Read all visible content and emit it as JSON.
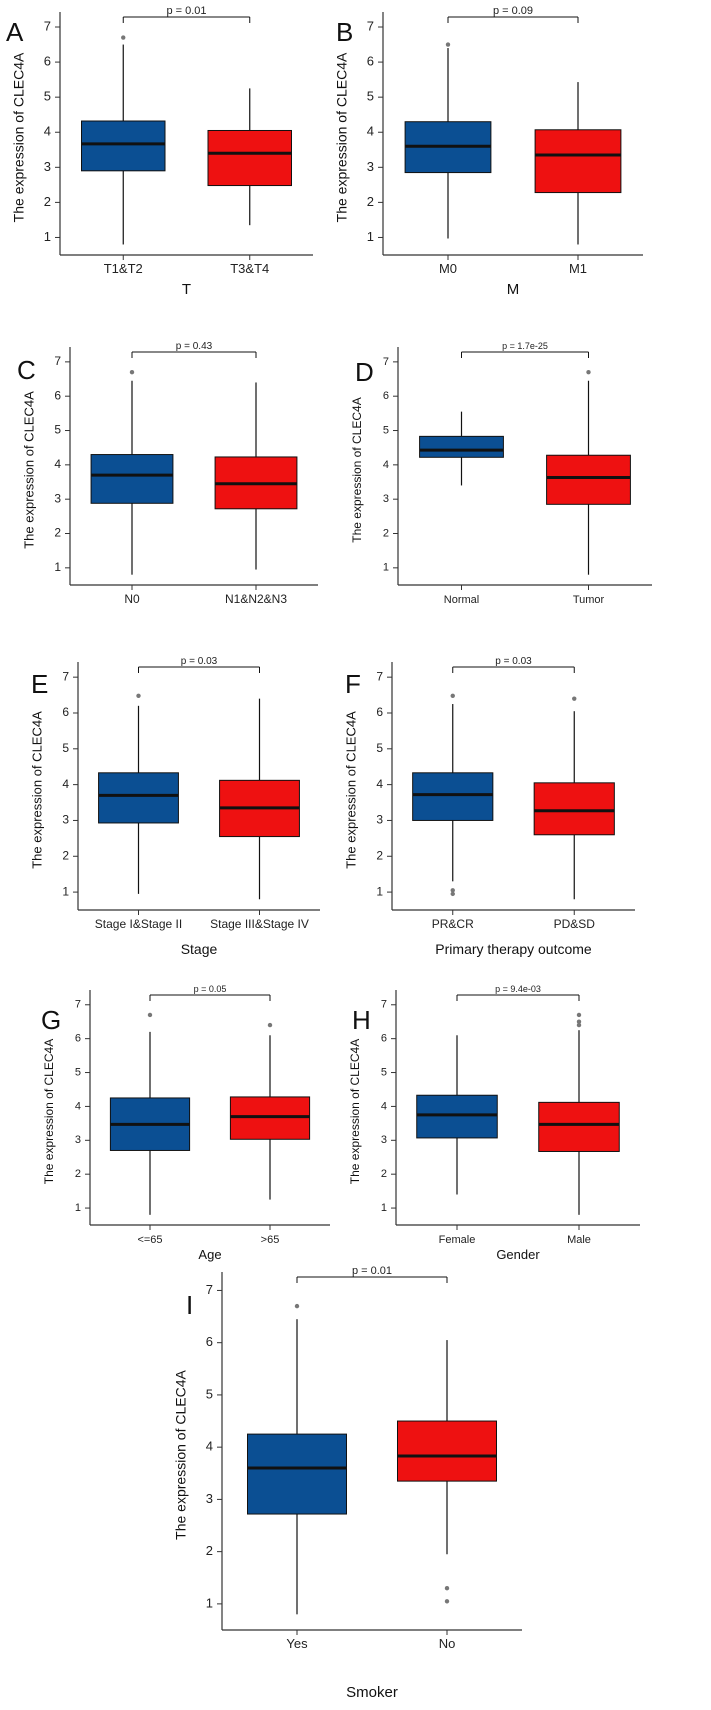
{
  "figure": {
    "colors": {
      "box_1": "#0b4f93",
      "box_2": "#ee1111",
      "median": "#111111",
      "outlier": "#777777",
      "axis": "#333333"
    }
  },
  "chart_data": [
    {
      "panel": "A",
      "type": "box",
      "ylabel": "The expression of CLEC4A",
      "xlabel": "T",
      "ylim": [
        0.5,
        7.2
      ],
      "yticks": [
        1,
        2,
        3,
        4,
        5,
        6,
        7
      ],
      "p_value": "p = 0.01",
      "categories": [
        "T1&T2",
        "T3&T4"
      ],
      "boxes": [
        {
          "category": "T1&T2",
          "min": 0.8,
          "q1": 2.9,
          "median": 3.67,
          "q3": 4.32,
          "max": 6.5,
          "outliers": [
            6.7
          ]
        },
        {
          "category": "T3&T4",
          "min": 1.35,
          "q1": 2.48,
          "median": 3.4,
          "q3": 4.05,
          "max": 5.25,
          "outliers": []
        }
      ]
    },
    {
      "panel": "B",
      "type": "box",
      "ylabel": "The expression of CLEC4A",
      "xlabel": "M",
      "ylim": [
        0.5,
        7.2
      ],
      "yticks": [
        1,
        2,
        3,
        4,
        5,
        6,
        7
      ],
      "p_value": "p = 0.09",
      "categories": [
        "M0",
        "M1"
      ],
      "boxes": [
        {
          "category": "M0",
          "min": 0.97,
          "q1": 2.85,
          "median": 3.6,
          "q3": 4.3,
          "max": 6.4,
          "outliers": [
            6.5
          ]
        },
        {
          "category": "M1",
          "min": 0.8,
          "q1": 2.28,
          "median": 3.35,
          "q3": 4.07,
          "max": 5.43,
          "outliers": []
        }
      ]
    },
    {
      "panel": "C",
      "type": "box",
      "ylabel": "The expression of CLEC4A",
      "xlabel": "",
      "ylim": [
        0.5,
        7.2
      ],
      "yticks": [
        1,
        2,
        3,
        4,
        5,
        6,
        7
      ],
      "p_value": "p = 0.43",
      "categories": [
        "N0",
        "N1&N2&N3"
      ],
      "boxes": [
        {
          "category": "N0",
          "min": 0.8,
          "q1": 2.88,
          "median": 3.7,
          "q3": 4.3,
          "max": 6.45,
          "outliers": [
            6.7
          ]
        },
        {
          "category": "N1&N2&N3",
          "min": 0.95,
          "q1": 2.72,
          "median": 3.45,
          "q3": 4.23,
          "max": 6.4,
          "outliers": []
        }
      ]
    },
    {
      "panel": "D",
      "type": "box",
      "ylabel": "The expression of CLEC4A",
      "xlabel": "",
      "ylim": [
        0.5,
        7.2
      ],
      "yticks": [
        1,
        2,
        3,
        4,
        5,
        6,
        7
      ],
      "p_value": "p = 1.7e-25",
      "categories": [
        "Normal",
        "Tumor"
      ],
      "boxes": [
        {
          "category": "Normal",
          "min": 3.4,
          "q1": 4.22,
          "median": 4.43,
          "q3": 4.83,
          "max": 5.55,
          "outliers": []
        },
        {
          "category": "Tumor",
          "min": 0.8,
          "q1": 2.85,
          "median": 3.63,
          "q3": 4.28,
          "max": 6.45,
          "outliers": [
            6.7
          ]
        }
      ]
    },
    {
      "panel": "E",
      "type": "box",
      "ylabel": "The expression of CLEC4A",
      "xlabel": "Stage",
      "ylim": [
        0.5,
        7.2
      ],
      "yticks": [
        1,
        2,
        3,
        4,
        5,
        6,
        7
      ],
      "p_value": "p = 0.03",
      "categories": [
        "Stage I&Stage II",
        "Stage III&Stage IV"
      ],
      "boxes": [
        {
          "category": "Stage I&Stage II",
          "min": 0.95,
          "q1": 2.93,
          "median": 3.7,
          "q3": 4.33,
          "max": 6.2,
          "outliers": [
            6.48
          ]
        },
        {
          "category": "Stage III&Stage IV",
          "min": 0.8,
          "q1": 2.55,
          "median": 3.35,
          "q3": 4.12,
          "max": 6.4,
          "outliers": []
        }
      ]
    },
    {
      "panel": "F",
      "type": "box",
      "ylabel": "The expression of CLEC4A",
      "xlabel": "Primary therapy outcome",
      "ylim": [
        0.5,
        7.2
      ],
      "yticks": [
        1,
        2,
        3,
        4,
        5,
        6,
        7
      ],
      "p_value": "p = 0.03",
      "categories": [
        "PR&CR",
        "PD&SD"
      ],
      "boxes": [
        {
          "category": "PR&CR",
          "min": 1.3,
          "q1": 3.0,
          "median": 3.72,
          "q3": 4.33,
          "max": 6.25,
          "outliers": [
            6.48,
            1.05,
            0.95
          ]
        },
        {
          "category": "PD&SD",
          "min": 0.8,
          "q1": 2.6,
          "median": 3.27,
          "q3": 4.05,
          "max": 6.05,
          "outliers": [
            6.4
          ]
        }
      ]
    },
    {
      "panel": "G",
      "type": "box",
      "ylabel": "The expression of CLEC4A",
      "xlabel": "Age",
      "ylim": [
        0.5,
        7.2
      ],
      "yticks": [
        1,
        2,
        3,
        4,
        5,
        6,
        7
      ],
      "p_value": "p = 0.05",
      "categories": [
        "<=65",
        ">65"
      ],
      "boxes": [
        {
          "category": "<=65",
          "min": 0.8,
          "q1": 2.7,
          "median": 3.47,
          "q3": 4.25,
          "max": 6.2,
          "outliers": [
            6.7
          ]
        },
        {
          "category": ">65",
          "min": 1.25,
          "q1": 3.03,
          "median": 3.7,
          "q3": 4.28,
          "max": 6.1,
          "outliers": [
            6.4
          ]
        }
      ]
    },
    {
      "panel": "H",
      "type": "box",
      "ylabel": "The expression of CLEC4A",
      "xlabel": "Gender",
      "ylim": [
        0.5,
        7.2
      ],
      "yticks": [
        1,
        2,
        3,
        4,
        5,
        6,
        7
      ],
      "p_value": "p = 9.4e-03",
      "categories": [
        "Female",
        "Male"
      ],
      "boxes": [
        {
          "category": "Female",
          "min": 1.4,
          "q1": 3.07,
          "median": 3.75,
          "q3": 4.33,
          "max": 6.1,
          "outliers": []
        },
        {
          "category": "Male",
          "min": 0.8,
          "q1": 2.67,
          "median": 3.47,
          "q3": 4.12,
          "max": 6.25,
          "outliers": [
            6.4,
            6.5,
            6.7
          ]
        }
      ]
    },
    {
      "panel": "I",
      "type": "box",
      "ylabel": "The expression of CLEC4A",
      "xlabel": "Smoker",
      "ylim": [
        0.5,
        7.2
      ],
      "yticks": [
        1,
        2,
        3,
        4,
        5,
        6,
        7
      ],
      "p_value": "p = 0.01",
      "categories": [
        "Yes",
        "No"
      ],
      "boxes": [
        {
          "category": "Yes",
          "min": 0.8,
          "q1": 2.72,
          "median": 3.6,
          "q3": 4.25,
          "max": 6.45,
          "outliers": [
            6.7
          ]
        },
        {
          "category": "No",
          "min": 1.95,
          "q1": 3.35,
          "median": 3.83,
          "q3": 4.5,
          "max": 6.05,
          "outliers": [
            1.3,
            1.05
          ]
        }
      ]
    }
  ]
}
